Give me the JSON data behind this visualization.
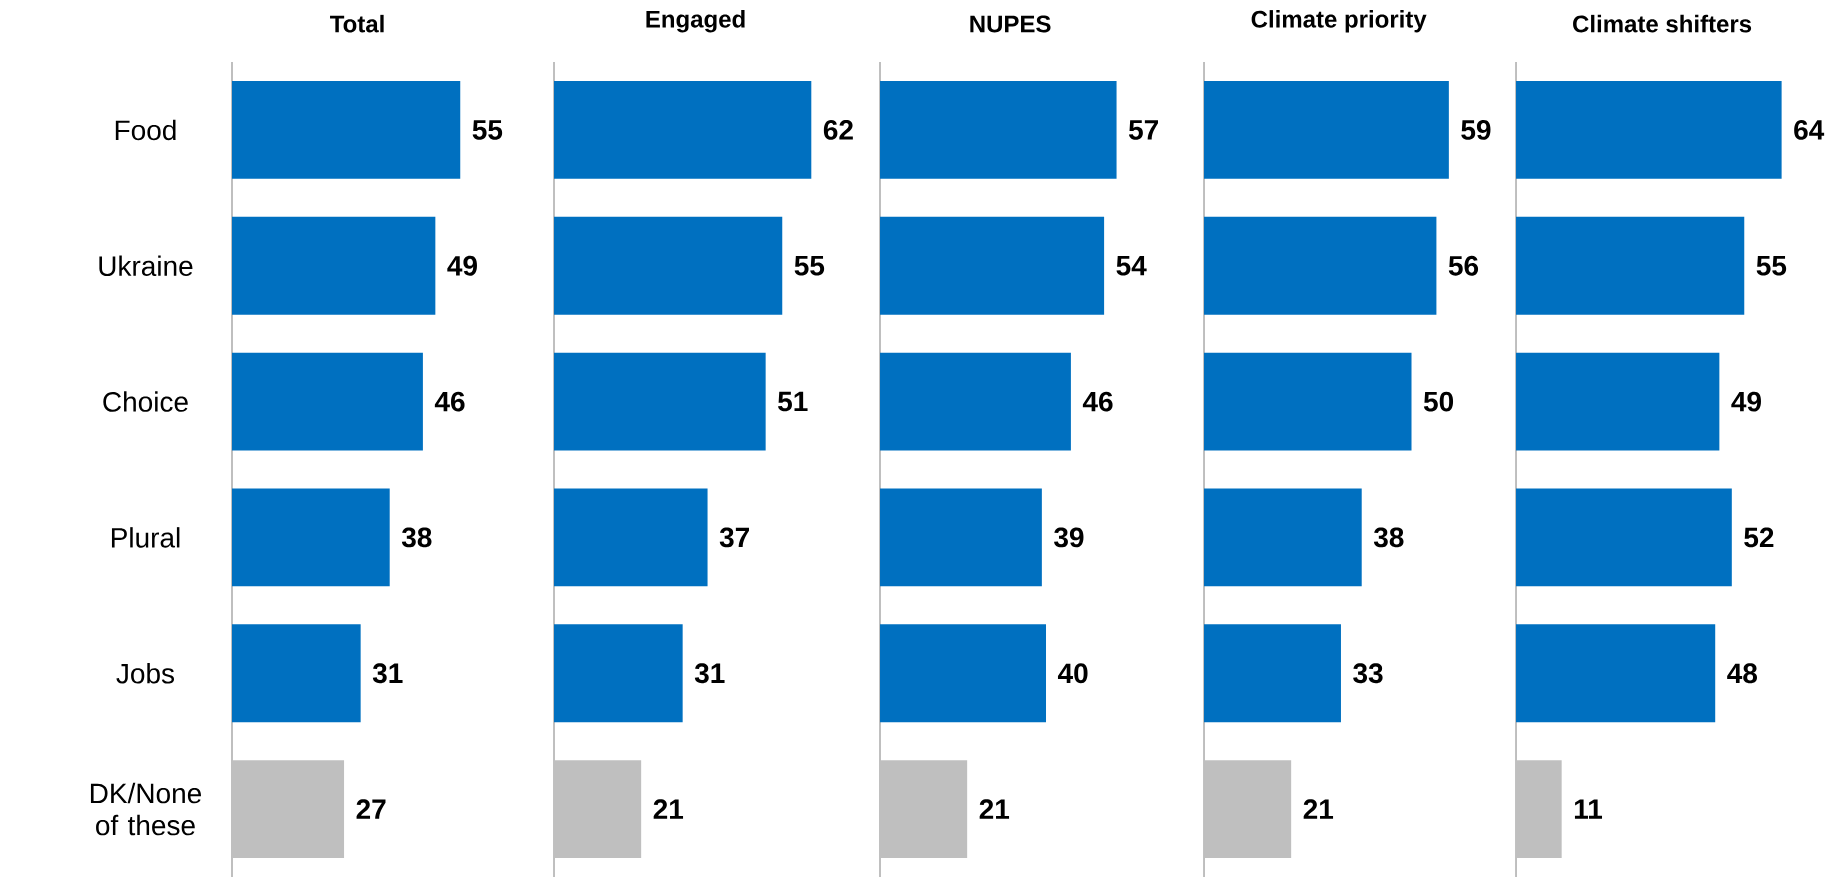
{
  "chart_data": [
    {
      "type": "bar",
      "orientation": "horizontal",
      "title": "Total",
      "categories": [
        "Food",
        "Ukraine",
        "Choice",
        "Plural",
        "Jobs",
        "DK/None of these"
      ],
      "values": [
        55,
        49,
        46,
        38,
        31,
        27
      ],
      "colors": [
        "#0070c0",
        "#0070c0",
        "#0070c0",
        "#0070c0",
        "#0070c0",
        "#bfbfbf"
      ],
      "data_labels": true,
      "tick_labels": "y"
    },
    {
      "type": "bar",
      "orientation": "horizontal",
      "title": "Engaged",
      "values": [
        62,
        55,
        51,
        37,
        31,
        21
      ],
      "colors": [
        "#0070c0",
        "#0070c0",
        "#0070c0",
        "#0070c0",
        "#0070c0",
        "#bfbfbf"
      ],
      "data_labels": true,
      "tick_labels": false
    },
    {
      "type": "bar",
      "orientation": "horizontal",
      "title": "NUPES",
      "values": [
        57,
        54,
        46,
        39,
        40,
        21
      ],
      "colors": [
        "#0070c0",
        "#0070c0",
        "#0070c0",
        "#0070c0",
        "#0070c0",
        "#bfbfbf"
      ],
      "data_labels": true,
      "tick_labels": false
    },
    {
      "type": "bar",
      "orientation": "horizontal",
      "title": "Climate priority",
      "values": [
        59,
        56,
        50,
        38,
        33,
        21
      ],
      "colors": [
        "#0070c0",
        "#0070c0",
        "#0070c0",
        "#0070c0",
        "#0070c0",
        "#bfbfbf"
      ],
      "data_labels": true,
      "tick_labels": false
    },
    {
      "type": "bar",
      "orientation": "horizontal",
      "title": "Climate shifters",
      "values": [
        64,
        55,
        49,
        52,
        48,
        11
      ],
      "colors": [
        "#0070c0",
        "#0070c0",
        "#0070c0",
        "#0070c0",
        "#0070c0",
        "#bfbfbf"
      ],
      "data_labels": true,
      "tick_labels": false
    }
  ]
}
